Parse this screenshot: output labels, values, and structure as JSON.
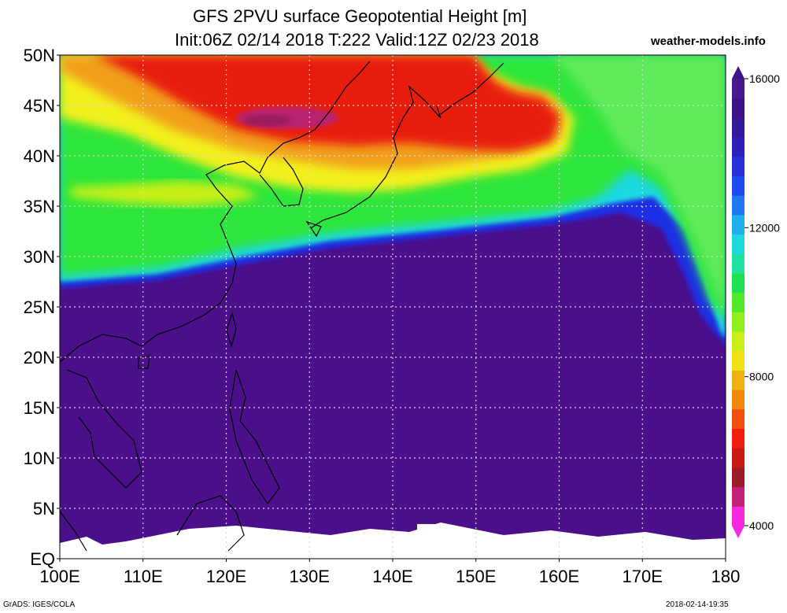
{
  "title": {
    "line1": "GFS 2PVU surface Geopotential Height [m]",
    "line2": "Init:06Z 02/14 2018 T:222 Valid:12Z 02/23 2018"
  },
  "site": "weather-models.info",
  "footer": {
    "left": "GrADS: IGES/COLA",
    "right": "2018-02-14-19:35"
  },
  "map": {
    "extent": {
      "lon_min": 100,
      "lon_max": 180,
      "lat_min": 0,
      "lat_max": 50
    },
    "lat_labels": [
      "EQ",
      "5N",
      "10N",
      "15N",
      "20N",
      "25N",
      "30N",
      "35N",
      "40N",
      "45N",
      "50N"
    ],
    "lon_labels": [
      "100E",
      "110E",
      "120E",
      "130E",
      "140E",
      "150E",
      "160E",
      "170E",
      "180"
    ],
    "field_colors": {
      "low_lat_purple": "#4b0f8c",
      "front_blue": "#1f2fe6",
      "green": "#2fe63a",
      "yellow": "#f2f01a",
      "orange": "#f2a01a",
      "red": "#e81d0f",
      "magenta": "#b8206e"
    }
  },
  "colorbar": {
    "labels": [
      "16000",
      "12000",
      "8000",
      "4000"
    ],
    "colors": [
      "#f52ae0",
      "#c2207a",
      "#9a1a28",
      "#c81b12",
      "#f01e0c",
      "#f0500c",
      "#f0880e",
      "#f0b010",
      "#f0e014",
      "#c8f018",
      "#90f01c",
      "#50ea28",
      "#1ee050",
      "#1ee0a0",
      "#1ed8e0",
      "#1eb0f0",
      "#1e78f0",
      "#1e4cf0",
      "#2630d8",
      "#2c20b8",
      "#35199c",
      "#3c1488",
      "#4a1890"
    ]
  }
}
